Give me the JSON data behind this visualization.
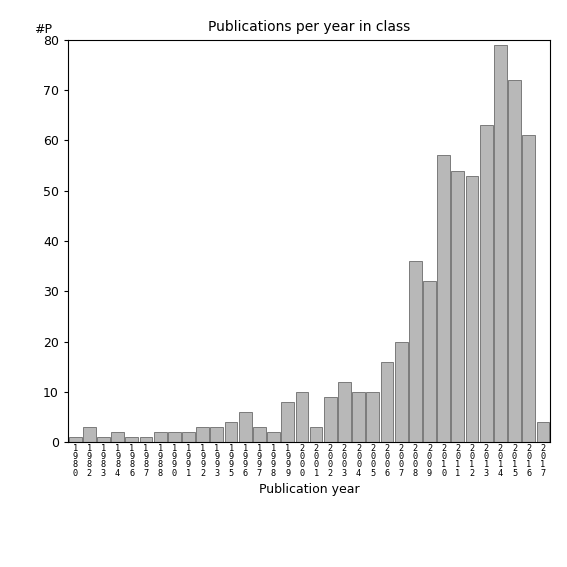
{
  "title": "Publications per year in class",
  "xlabel": "Publication year",
  "ylabel": "#P",
  "bar_color": "#b8b8b8",
  "bar_edgecolor": "#555555",
  "categories": [
    "1\n9\n8\n0",
    "1\n9\n8\n2",
    "1\n9\n8\n3",
    "1\n9\n8\n4",
    "1\n9\n8\n6",
    "1\n9\n8\n7",
    "1\n9\n8\n8",
    "1\n9\n9\n0",
    "1\n9\n9\n1",
    "1\n9\n9\n2",
    "1\n9\n9\n3",
    "1\n9\n9\n5",
    "1\n9\n9\n6",
    "1\n9\n9\n7",
    "1\n9\n9\n8",
    "1\n9\n9\n9",
    "2\n0\n0\n0",
    "2\n0\n0\n1",
    "2\n0\n0\n2",
    "2\n0\n0\n3",
    "2\n0\n0\n4",
    "2\n0\n0\n5",
    "2\n0\n0\n6",
    "2\n0\n0\n7",
    "2\n0\n0\n8",
    "2\n0\n0\n9",
    "2\n0\n1\n0",
    "2\n0\n1\n1",
    "2\n0\n1\n2",
    "2\n0\n1\n3",
    "2\n0\n1\n4",
    "2\n0\n1\n5",
    "2\n0\n1\n6",
    "2\n0\n1\n7"
  ],
  "values": [
    1,
    3,
    1,
    2,
    1,
    1,
    2,
    2,
    2,
    3,
    3,
    4,
    6,
    3,
    2,
    8,
    10,
    3,
    9,
    12,
    10,
    10,
    16,
    20,
    36,
    32,
    57,
    54,
    53,
    63,
    79,
    72,
    61,
    4
  ],
  "ylim": [
    0,
    80
  ],
  "yticks": [
    0,
    10,
    20,
    30,
    40,
    50,
    60,
    70,
    80
  ],
  "background_color": "#ffffff"
}
